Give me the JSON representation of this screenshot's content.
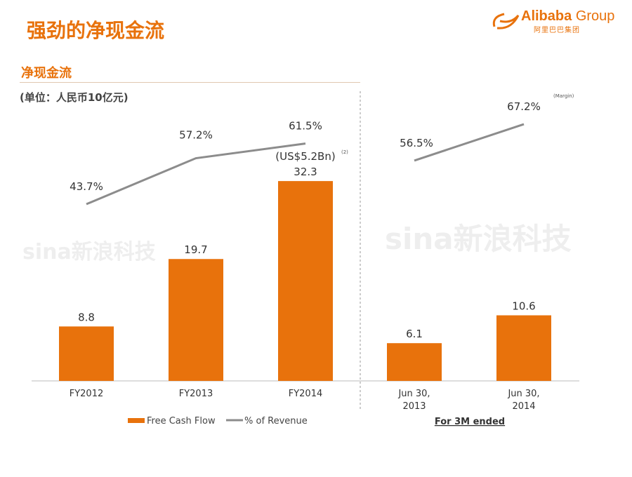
{
  "header": {
    "title": "强劲的净现金流",
    "logo_text": "Alibaba",
    "logo_group": "Group",
    "logo_cn": "阿里巴巴集团"
  },
  "section": {
    "subtitle": "净现金流",
    "unit": "(单位：人民币10亿元)"
  },
  "watermark": "sina新浪科技",
  "colors": {
    "bar": "#e8720c",
    "line": "#8c8c8c",
    "title": "#e8720c"
  },
  "chart_data": {
    "type": "bar",
    "categories": [
      "FY2012",
      "FY2013",
      "FY2014",
      "Jun 30, 2013",
      "Jun 30, 2014"
    ],
    "category_lines": [
      [
        "FY2012"
      ],
      [
        "FY2013"
      ],
      [
        "FY2014"
      ],
      [
        "Jun 30,",
        "2013"
      ],
      [
        "Jun 30,",
        "2014"
      ]
    ],
    "series": [
      {
        "name": "Free Cash Flow",
        "type": "bar",
        "values": [
          8.8,
          19.7,
          32.3,
          6.1,
          10.6
        ],
        "labels": [
          "8.8",
          "19.7",
          "32.3",
          "6.1",
          "10.6"
        ]
      },
      {
        "name": "% of Revenue",
        "type": "line",
        "values": [
          43.7,
          57.2,
          61.5,
          56.5,
          67.2
        ],
        "labels": [
          "43.7%",
          "57.2%",
          "61.5%",
          "56.5%",
          "67.2%"
        ],
        "segments": [
          [
            0,
            2
          ],
          [
            3,
            4
          ]
        ]
      }
    ],
    "annotation": "(US$5.2Bn)",
    "annotation_note": "(2)",
    "margin_label": "(Margin)",
    "group_label": "For 3M ended",
    "legend": [
      "Free Cash Flow",
      "% of Revenue"
    ],
    "legend_position": "bottom-left"
  }
}
